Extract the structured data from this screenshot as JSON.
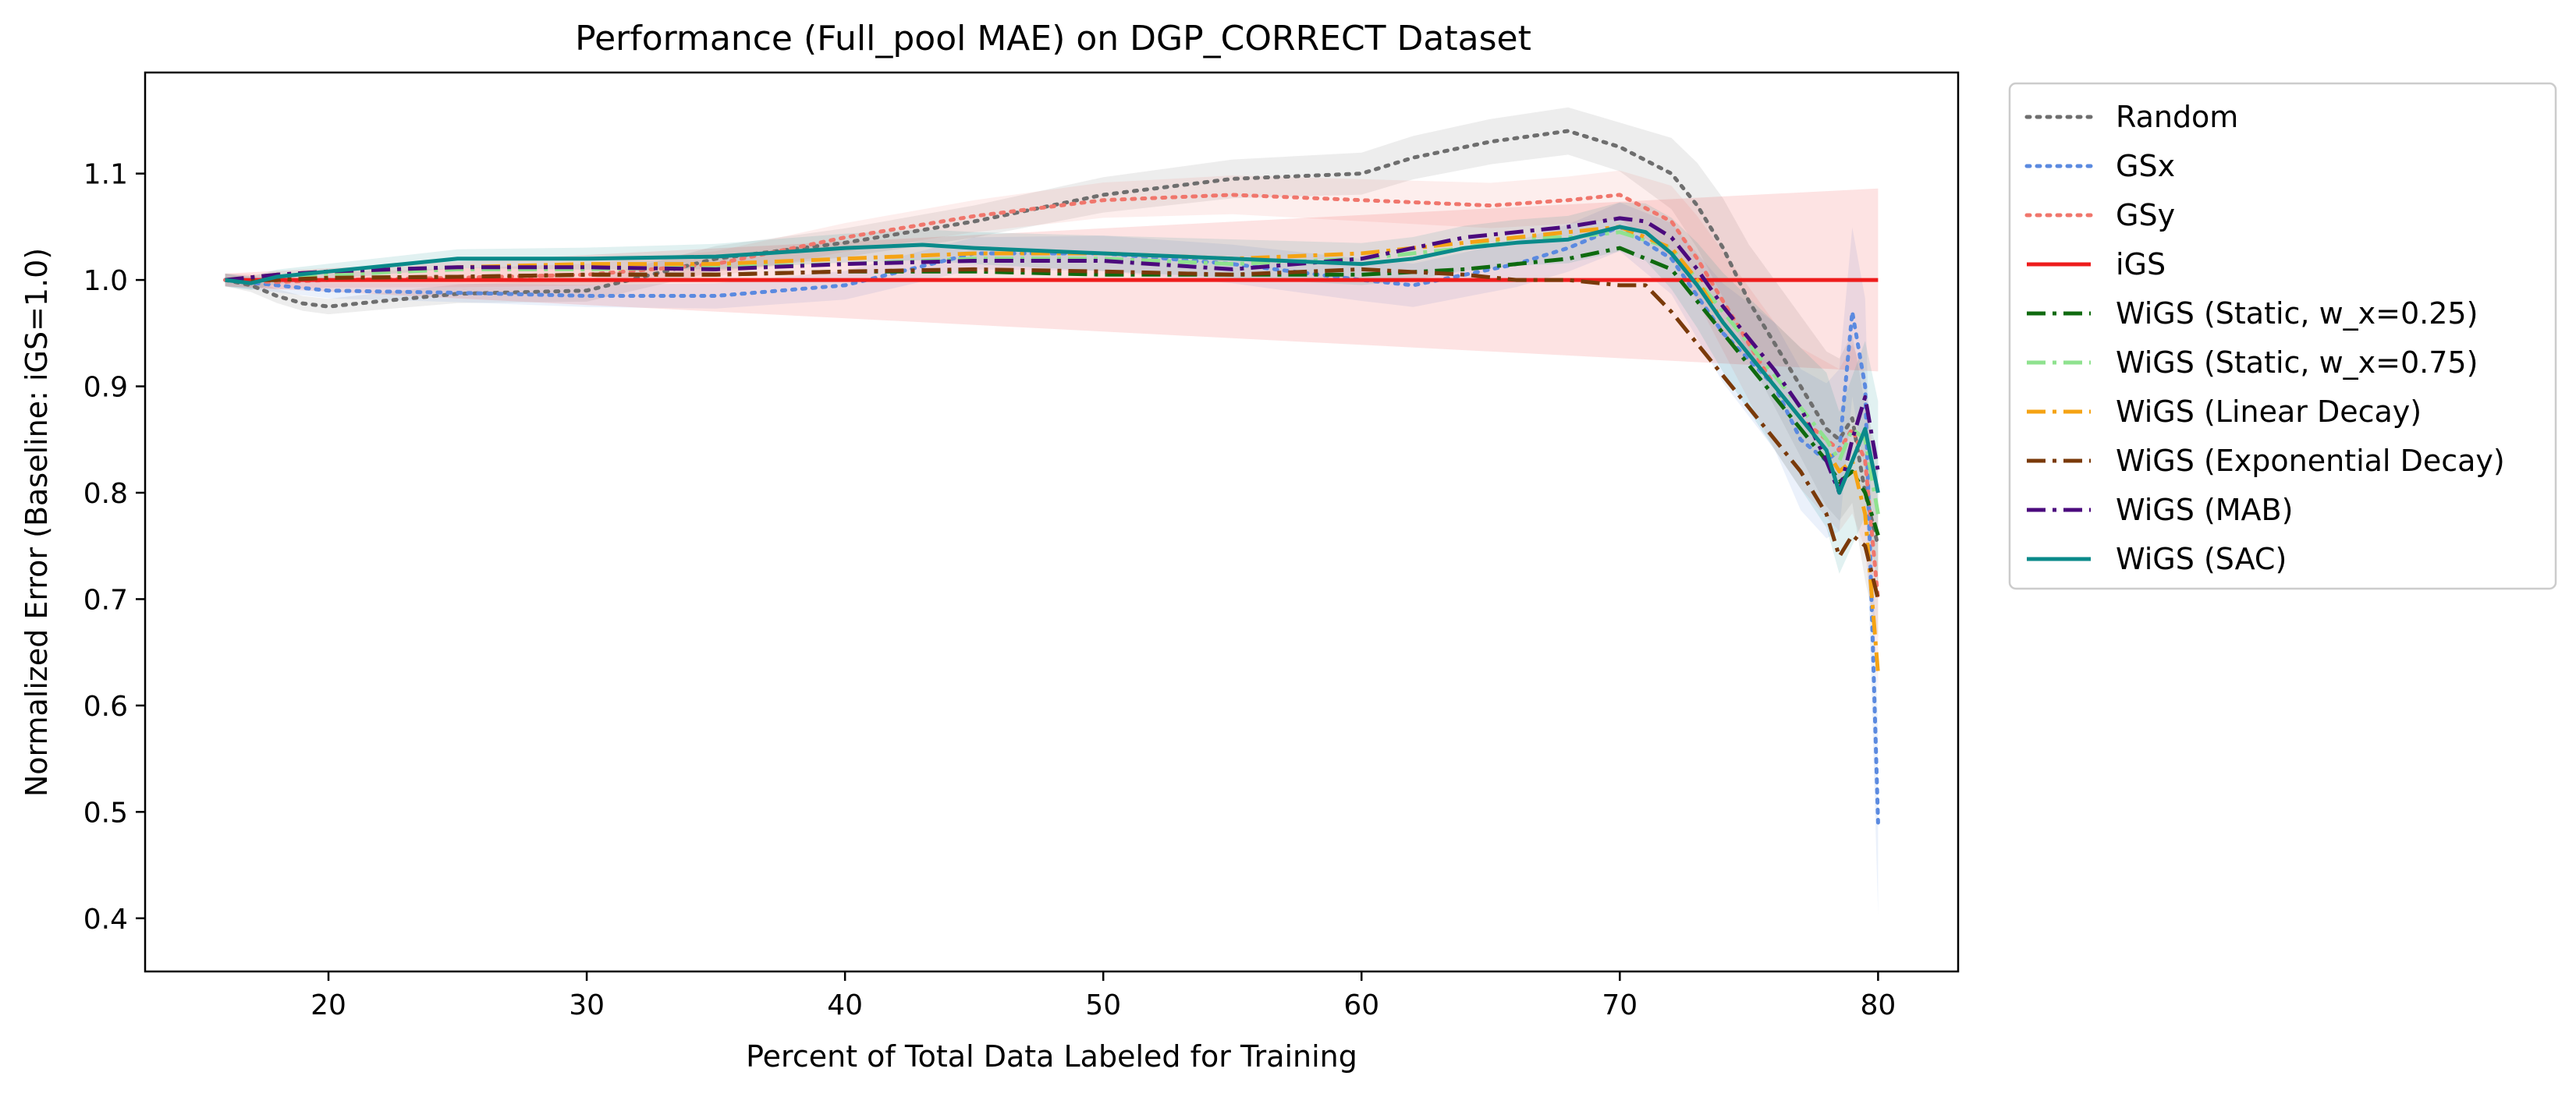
{
  "chart_data": {
    "type": "line",
    "title": "Performance (Full_pool MAE) on DGP_CORRECT Dataset",
    "xlabel": "Percent of Total Data Labeled for Training",
    "ylabel": "Normalized Error (Baseline: iGS=1.0)",
    "xlim": [
      12.9,
      83.1
    ],
    "ylim": [
      0.35,
      1.195
    ],
    "xticks": [
      20,
      30,
      40,
      50,
      60,
      70,
      80
    ],
    "yticks": [
      0.4,
      0.5,
      0.6,
      0.7,
      0.8,
      0.9,
      1.0,
      1.1
    ],
    "xtick_labels": [
      "20",
      "30",
      "40",
      "50",
      "60",
      "70",
      "80"
    ],
    "ytick_labels": [
      "0.4",
      "0.5",
      "0.6",
      "0.7",
      "0.8",
      "0.9",
      "1.0",
      "1.1"
    ],
    "grid": false,
    "legend_position": "outside-right-top",
    "series": [
      {
        "name": "Random",
        "color": "#6e6e6e",
        "style": "dotted",
        "band": true,
        "x": [
          16,
          17,
          18,
          19,
          20,
          22,
          25,
          30,
          35,
          40,
          45,
          50,
          55,
          60,
          62,
          65,
          68,
          70,
          72,
          73,
          74,
          75,
          76,
          77,
          78,
          78.5,
          79,
          79.5,
          80
        ],
        "y": [
          1.0,
          0.995,
          0.985,
          0.978,
          0.975,
          0.98,
          0.987,
          0.99,
          1.02,
          1.035,
          1.055,
          1.08,
          1.095,
          1.1,
          1.115,
          1.13,
          1.14,
          1.125,
          1.1,
          1.07,
          1.03,
          0.98,
          0.94,
          0.9,
          0.86,
          0.85,
          0.87,
          0.8,
          0.75
        ]
      },
      {
        "name": "GSx",
        "color": "#5b8ae0",
        "style": "dotted",
        "band": true,
        "x": [
          16,
          18,
          20,
          25,
          30,
          35,
          40,
          45,
          50,
          55,
          60,
          62,
          64,
          66,
          68,
          70,
          72,
          74,
          76,
          77,
          78,
          78.5,
          79,
          79.5,
          80
        ],
        "y": [
          1.0,
          0.995,
          0.99,
          0.988,
          0.985,
          0.985,
          0.995,
          1.025,
          1.025,
          1.015,
          1.0,
          0.995,
          1.005,
          1.015,
          1.03,
          1.05,
          1.02,
          0.95,
          0.9,
          0.85,
          0.83,
          0.84,
          0.97,
          0.9,
          0.49
        ]
      },
      {
        "name": "GSy",
        "color": "#f0766c",
        "style": "dotted",
        "band": true,
        "x": [
          16,
          18,
          20,
          25,
          30,
          35,
          40,
          45,
          50,
          55,
          60,
          65,
          68,
          70,
          72,
          73,
          74,
          75,
          76,
          77,
          78,
          78.5,
          79,
          79.5,
          80
        ],
        "y": [
          1.0,
          0.998,
          1.0,
          1.002,
          1.005,
          1.015,
          1.04,
          1.06,
          1.075,
          1.08,
          1.075,
          1.07,
          1.075,
          1.08,
          1.055,
          1.02,
          0.98,
          0.94,
          0.9,
          0.87,
          0.85,
          0.84,
          0.86,
          0.83,
          0.7
        ]
      },
      {
        "name": "iGS",
        "color": "#ee1c1c",
        "style": "solid",
        "band": true,
        "x": [
          16,
          80
        ],
        "y": [
          1.0,
          1.0
        ]
      },
      {
        "name": "WiGS (Static, w_x=0.25)",
        "color": "#0f6a0f",
        "style": "dashdot",
        "band": false,
        "x": [
          16,
          18,
          20,
          25,
          30,
          35,
          40,
          45,
          50,
          55,
          60,
          64,
          66,
          68,
          70,
          72,
          73,
          74,
          75,
          76,
          77,
          78,
          78.5,
          79,
          79.5,
          80
        ],
        "y": [
          1.0,
          1.0,
          1.002,
          1.003,
          1.005,
          1.005,
          1.008,
          1.008,
          1.005,
          1.005,
          1.005,
          1.01,
          1.015,
          1.02,
          1.03,
          1.01,
          0.98,
          0.95,
          0.92,
          0.89,
          0.86,
          0.83,
          0.81,
          0.82,
          0.8,
          0.76
        ]
      },
      {
        "name": "WiGS (Static, w_x=0.75)",
        "color": "#8fe28f",
        "style": "dashdot",
        "band": false,
        "x": [
          16,
          18,
          20,
          25,
          30,
          35,
          40,
          45,
          50,
          55,
          60,
          64,
          66,
          68,
          70,
          72,
          73,
          74,
          75,
          76,
          77,
          78,
          78.5,
          79,
          79.5,
          80
        ],
        "y": [
          1.0,
          1.002,
          1.005,
          1.01,
          1.01,
          1.012,
          1.015,
          1.02,
          1.02,
          1.015,
          1.02,
          1.03,
          1.04,
          1.04,
          1.045,
          1.03,
          1.0,
          0.97,
          0.94,
          0.91,
          0.88,
          0.85,
          0.83,
          0.86,
          0.85,
          0.78
        ]
      },
      {
        "name": "WiGS (Linear Decay)",
        "color": "#f5a314",
        "style": "dashdot",
        "band": false,
        "x": [
          16,
          18,
          20,
          25,
          30,
          35,
          40,
          45,
          50,
          55,
          60,
          64,
          66,
          68,
          70,
          72,
          73,
          74,
          75,
          76,
          77,
          78,
          78.5,
          79,
          79.5,
          80
        ],
        "y": [
          1.0,
          1.005,
          1.008,
          1.012,
          1.015,
          1.015,
          1.02,
          1.025,
          1.025,
          1.02,
          1.025,
          1.035,
          1.04,
          1.045,
          1.05,
          1.03,
          1.0,
          0.96,
          0.93,
          0.9,
          0.87,
          0.84,
          0.82,
          0.83,
          0.78,
          0.63
        ]
      },
      {
        "name": "WiGS (Exponential Decay)",
        "color": "#7a3a0a",
        "style": "dashdot",
        "band": false,
        "x": [
          16,
          18,
          20,
          25,
          30,
          35,
          40,
          45,
          50,
          55,
          60,
          64,
          66,
          68,
          70,
          71,
          72,
          73,
          74,
          75,
          76,
          77,
          78,
          78.5,
          79,
          79.5,
          80
        ],
        "y": [
          1.0,
          1.0,
          1.002,
          1.003,
          1.005,
          1.005,
          1.008,
          1.01,
          1.008,
          1.005,
          1.01,
          1.005,
          1.0,
          1.0,
          0.995,
          0.995,
          0.97,
          0.94,
          0.91,
          0.88,
          0.85,
          0.82,
          0.78,
          0.74,
          0.76,
          0.75,
          0.7
        ]
      },
      {
        "name": "WiGS (MAB)",
        "color": "#4b0a7d",
        "style": "dashdot",
        "band": false,
        "x": [
          16,
          18,
          20,
          25,
          30,
          35,
          40,
          45,
          50,
          55,
          60,
          62,
          64,
          66,
          68,
          70,
          71,
          72,
          73,
          74,
          75,
          76,
          77,
          78,
          78.5,
          79,
          79.5,
          80
        ],
        "y": [
          1.0,
          1.005,
          1.008,
          1.012,
          1.012,
          1.01,
          1.015,
          1.018,
          1.018,
          1.01,
          1.02,
          1.03,
          1.04,
          1.045,
          1.05,
          1.058,
          1.055,
          1.04,
          1.01,
          0.975,
          0.945,
          0.915,
          0.88,
          0.83,
          0.8,
          0.85,
          0.89,
          0.82
        ]
      },
      {
        "name": "WiGS (SAC)",
        "color": "#0a8a8a",
        "style": "solid",
        "band": true,
        "x": [
          16,
          17,
          18,
          20,
          25,
          30,
          35,
          40,
          43,
          45,
          50,
          55,
          60,
          62,
          64,
          66,
          68,
          70,
          71,
          72,
          73,
          74,
          75,
          76,
          77,
          78,
          78.5,
          79,
          79.5,
          80
        ],
        "y": [
          1.0,
          0.997,
          1.003,
          1.008,
          1.02,
          1.02,
          1.022,
          1.03,
          1.033,
          1.03,
          1.025,
          1.02,
          1.015,
          1.02,
          1.03,
          1.035,
          1.038,
          1.05,
          1.045,
          1.025,
          0.995,
          0.96,
          0.93,
          0.9,
          0.87,
          0.84,
          0.8,
          0.83,
          0.86,
          0.8
        ]
      }
    ]
  }
}
